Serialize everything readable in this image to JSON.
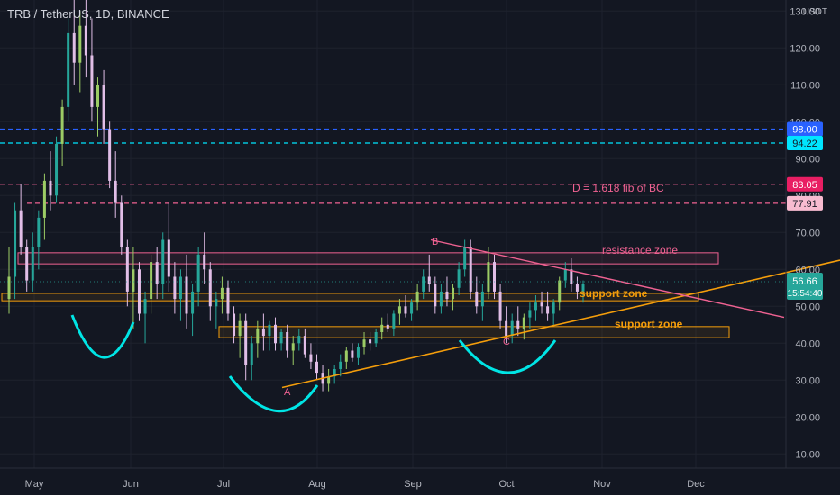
{
  "header": {
    "symbol_title": "TRB / TetherUS, 1D, BINANCE",
    "unit": "USDT"
  },
  "colors": {
    "background": "#131722",
    "grid": "#1e222d",
    "up": "#26a69a",
    "up_alt": "#9ccc65",
    "down": "#e1bee7",
    "support": "#f59e0b",
    "resistance": "#f06292",
    "blue_level": "#2962ff",
    "cyan_level": "#00e5ff",
    "cup": "#00e5e5",
    "text_dim": "#b2b5be"
  },
  "chart_data": {
    "type": "candlestick",
    "title": "TRB / TetherUS, 1D, BINANCE",
    "ylabel": "USDT",
    "y_ticks": [
      10,
      20,
      30,
      40,
      50,
      60,
      70,
      80,
      90,
      100,
      110,
      120,
      130
    ],
    "y_tick_labels": [
      "10.00",
      "20.00",
      "30.00",
      "40.00",
      "50.00",
      "60.00",
      "70.00",
      "80.00",
      "90.00",
      "100.00",
      "110.00",
      "120.00",
      "130.00"
    ],
    "x_ticks": [
      "May",
      "Jun",
      "Jul",
      "Aug",
      "Sep",
      "Oct",
      "Nov",
      "Dec"
    ],
    "ylim": [
      0,
      133
    ],
    "grid": true,
    "last_price": "56.66",
    "countdown": "15:54:40",
    "horizontal_levels": [
      {
        "value": 98.0,
        "label": "98.00",
        "color": "#2962ff",
        "style": "dashed"
      },
      {
        "value": 94.22,
        "label": "94.22",
        "color": "#00e5ff",
        "style": "dashed"
      },
      {
        "value": 83.05,
        "label": "83.05",
        "color": "#f06292",
        "style": "dashed"
      },
      {
        "value": 77.91,
        "label": "77.91",
        "color": "#f06292",
        "style": "dashed"
      }
    ],
    "annotations": [
      {
        "text": "D = 1.618 fib of BC",
        "color": "#f06292"
      },
      {
        "text": "resistance zone",
        "color": "#f06292"
      },
      {
        "text": "support zone",
        "color": "#f59e0b"
      },
      {
        "text": "support zone",
        "color": "#f59e0b"
      },
      {
        "text": "A",
        "color": "#f06292"
      },
      {
        "text": "B",
        "color": "#f06292"
      },
      {
        "text": "C",
        "color": "#f06292"
      }
    ],
    "zones": [
      {
        "name": "resistance zone",
        "low": 61.5,
        "high": 64.5
      },
      {
        "name": "support zone upper",
        "low": 51.5,
        "high": 53.5
      },
      {
        "name": "support zone lower",
        "low": 41.5,
        "high": 44.5
      }
    ],
    "trendlines": [
      {
        "name": "ascending support",
        "from": {
          "day": 83,
          "value": 28
        },
        "to": {
          "day": 276,
          "value": 60
        }
      },
      {
        "name": "descending resistance",
        "from": {
          "day": 130,
          "value": 68
        },
        "to": {
          "day": 271,
          "value": 47
        }
      }
    ],
    "pivots": [
      {
        "label": "A",
        "day": 82,
        "value": 28
      },
      {
        "label": "B",
        "day": 129,
        "value": 68
      },
      {
        "label": "C",
        "day": 155,
        "value": 40
      }
    ],
    "candles": [
      [
        52.0,
        66.0,
        48.0,
        58.0
      ],
      [
        58.0,
        78.0,
        52.0,
        76.0
      ],
      [
        76.0,
        83.0,
        64.0,
        66.0
      ],
      [
        66.0,
        68.0,
        54.0,
        57.0
      ],
      [
        57.0,
        70.0,
        54.0,
        66.0
      ],
      [
        66.0,
        76.0,
        60.0,
        74.0
      ],
      [
        74.0,
        86.0,
        68.0,
        84.0
      ],
      [
        84.0,
        92.0,
        76.0,
        80.0
      ],
      [
        80.0,
        96.0,
        78.0,
        94.0
      ],
      [
        94.0,
        106.0,
        88.0,
        104.0
      ],
      [
        104.0,
        128.0,
        100.0,
        124.0
      ],
      [
        124.0,
        133.0,
        110.0,
        116.0
      ],
      [
        116.0,
        130.0,
        108.0,
        126.0
      ],
      [
        126.0,
        133.0,
        112.0,
        118.0
      ],
      [
        118.0,
        128.0,
        100.0,
        104.0
      ],
      [
        104.0,
        112.0,
        96.0,
        110.0
      ],
      [
        110.0,
        114.0,
        94.0,
        98.0
      ],
      [
        98.0,
        100.0,
        82.0,
        84.0
      ],
      [
        84.0,
        92.0,
        74.0,
        78.0
      ],
      [
        78.0,
        80.0,
        64.0,
        66.0
      ],
      [
        66.0,
        68.0,
        50.0,
        54.0
      ],
      [
        54.0,
        66.0,
        44.0,
        60.0
      ],
      [
        60.0,
        62.0,
        46.0,
        48.0
      ],
      [
        48.0,
        54.0,
        40.0,
        52.0
      ],
      [
        52.0,
        64.0,
        48.0,
        62.0
      ],
      [
        62.0,
        66.0,
        52.0,
        56.0
      ],
      [
        56.0,
        70.0,
        52.0,
        68.0
      ],
      [
        68.0,
        78.0,
        54.0,
        58.0
      ],
      [
        58.0,
        62.0,
        48.0,
        52.0
      ],
      [
        52.0,
        60.0,
        46.0,
        58.0
      ],
      [
        58.0,
        64.0,
        44.0,
        48.0
      ],
      [
        48.0,
        56.0,
        42.0,
        54.0
      ],
      [
        54.0,
        66.0,
        50.0,
        64.0
      ],
      [
        64.0,
        70.0,
        56.0,
        60.0
      ],
      [
        60.0,
        62.0,
        46.0,
        50.0
      ],
      [
        50.0,
        54.0,
        44.0,
        52.0
      ],
      [
        52.0,
        58.0,
        48.0,
        55.0
      ],
      [
        55.0,
        57.0,
        46.0,
        48.0
      ],
      [
        48.0,
        50.0,
        40.0,
        42.0
      ],
      [
        42.0,
        48.0,
        36.0,
        46.0
      ],
      [
        46.0,
        48.0,
        30.0,
        34.0
      ],
      [
        34.0,
        42.0,
        30.0,
        40.0
      ],
      [
        40.0,
        46.0,
        36.0,
        44.0
      ],
      [
        44.0,
        48.0,
        38.0,
        42.0
      ],
      [
        42.0,
        46.0,
        38.0,
        45.0
      ],
      [
        45.0,
        47.0,
        38.0,
        40.0
      ],
      [
        40.0,
        44.0,
        38.0,
        43.0
      ],
      [
        43.0,
        45.0,
        36.0,
        38.0
      ],
      [
        38.0,
        42.0,
        34.0,
        40.0
      ],
      [
        40.0,
        44.0,
        38.0,
        42.0
      ],
      [
        42.0,
        44.0,
        36.0,
        37.0
      ],
      [
        37.0,
        40.0,
        33.0,
        35.0
      ],
      [
        35.0,
        37.0,
        30.0,
        32.0
      ],
      [
        32.0,
        34.0,
        27.0,
        29.0
      ],
      [
        29.0,
        33.0,
        27.0,
        31.0
      ],
      [
        31.0,
        34.0,
        29.0,
        33.0
      ],
      [
        33.0,
        37.0,
        31.0,
        35.0
      ],
      [
        35.0,
        39.0,
        33.0,
        38.0
      ],
      [
        38.0,
        40.0,
        35.0,
        36.0
      ],
      [
        36.0,
        40.0,
        34.0,
        39.0
      ],
      [
        39.0,
        43.0,
        37.0,
        41.0
      ],
      [
        41.0,
        43.0,
        38.0,
        40.0
      ],
      [
        40.0,
        44.0,
        39.0,
        43.0
      ],
      [
        43.0,
        47.0,
        41.0,
        45.0
      ],
      [
        45.0,
        48.0,
        43.0,
        44.0
      ],
      [
        44.0,
        49.0,
        42.0,
        48.0
      ],
      [
        48.0,
        52.0,
        45.0,
        50.0
      ],
      [
        50.0,
        53.0,
        47.0,
        48.0
      ],
      [
        48.0,
        52.0,
        46.0,
        51.0
      ],
      [
        51.0,
        56.0,
        49.0,
        54.0
      ],
      [
        54.0,
        60.0,
        52.0,
        58.0
      ],
      [
        58.0,
        64.0,
        54.0,
        56.0
      ],
      [
        56.0,
        58.0,
        48.0,
        50.0
      ],
      [
        50.0,
        56.0,
        48.0,
        54.0
      ],
      [
        54.0,
        58.0,
        50.0,
        52.0
      ],
      [
        52.0,
        56.0,
        49.0,
        55.0
      ],
      [
        55.0,
        62.0,
        53.0,
        60.0
      ],
      [
        60.0,
        68.0,
        58.0,
        66.0
      ],
      [
        66.0,
        68.0,
        52.0,
        54.0
      ],
      [
        54.0,
        58.0,
        48.0,
        50.0
      ],
      [
        50.0,
        56.0,
        46.0,
        54.0
      ],
      [
        54.0,
        66.0,
        52.0,
        62.0
      ],
      [
        62.0,
        64.0,
        52.0,
        54.0
      ],
      [
        54.0,
        56.0,
        44.0,
        46.0
      ],
      [
        46.0,
        50.0,
        40.0,
        42.0
      ],
      [
        42.0,
        48.0,
        40.0,
        46.0
      ],
      [
        46.0,
        50.0,
        42.0,
        44.0
      ],
      [
        44.0,
        48.0,
        41.0,
        47.0
      ],
      [
        47.0,
        51.0,
        44.0,
        49.0
      ],
      [
        49.0,
        53.0,
        46.0,
        51.0
      ],
      [
        51.0,
        54.0,
        48.0,
        50.0
      ],
      [
        50.0,
        54.0,
        46.0,
        48.0
      ],
      [
        48.0,
        52.0,
        45.0,
        51.0
      ],
      [
        51.0,
        58.0,
        49.0,
        57.0
      ],
      [
        57.0,
        62.0,
        55.0,
        60.0
      ],
      [
        60.0,
        63.0,
        54.0,
        56.0
      ],
      [
        56.0,
        58.0,
        52.0,
        54.0
      ],
      [
        54.0,
        57.0,
        51.0,
        56.0
      ]
    ]
  }
}
